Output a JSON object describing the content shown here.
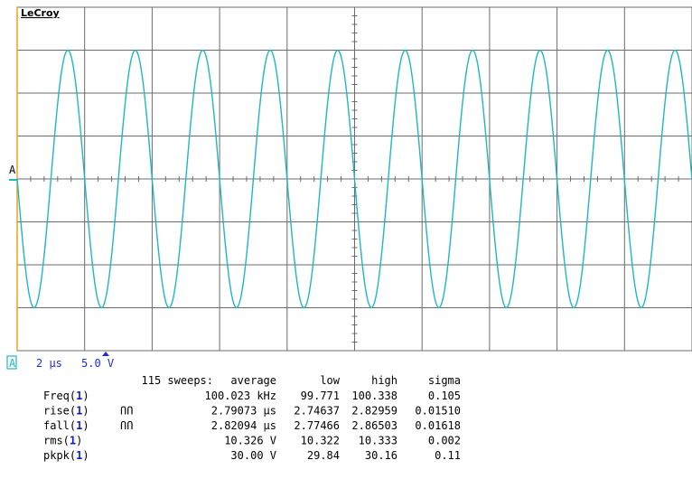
{
  "brand": "LeCroy",
  "trigger_marker": "A",
  "channel_marker": "A",
  "timebase": "2 µs",
  "volts_per_div": "5.0 V",
  "trace_color": "#1fb6c3",
  "grid_color": "#6b6b6b",
  "axis_accent_color": "#f2a21b",
  "waveform": {
    "frequency_hz": 100023,
    "amplitude_divisions": 3.0
  },
  "measurements": {
    "sweeps_label": "115 sweeps:",
    "headers": [
      "average",
      "low",
      "high",
      "sigma"
    ],
    "rows": [
      {
        "name": "Freq",
        "channel": "1",
        "icon": "",
        "average": "100.023 kHz",
        "low": "99.771",
        "high": "100.338",
        "sigma": "0.105"
      },
      {
        "name": "rise",
        "channel": "1",
        "icon": "ՈՈ",
        "average": "2.79073 µs",
        "low": "2.74637",
        "high": "2.82959",
        "sigma": "0.01510"
      },
      {
        "name": "fall",
        "channel": "1",
        "icon": "ՈՈ",
        "average": "2.82094 µs",
        "low": "2.77466",
        "high": "2.86503",
        "sigma": "0.01618"
      },
      {
        "name": "rms",
        "channel": "1",
        "icon": "",
        "average": "10.326 V",
        "low": "10.322",
        "high": "10.333",
        "sigma": "0.002"
      },
      {
        "name": "pkpk",
        "channel": "1",
        "icon": "",
        "average": "30.00 V",
        "low": "29.84",
        "high": "30.16",
        "sigma": "0.11"
      }
    ]
  }
}
